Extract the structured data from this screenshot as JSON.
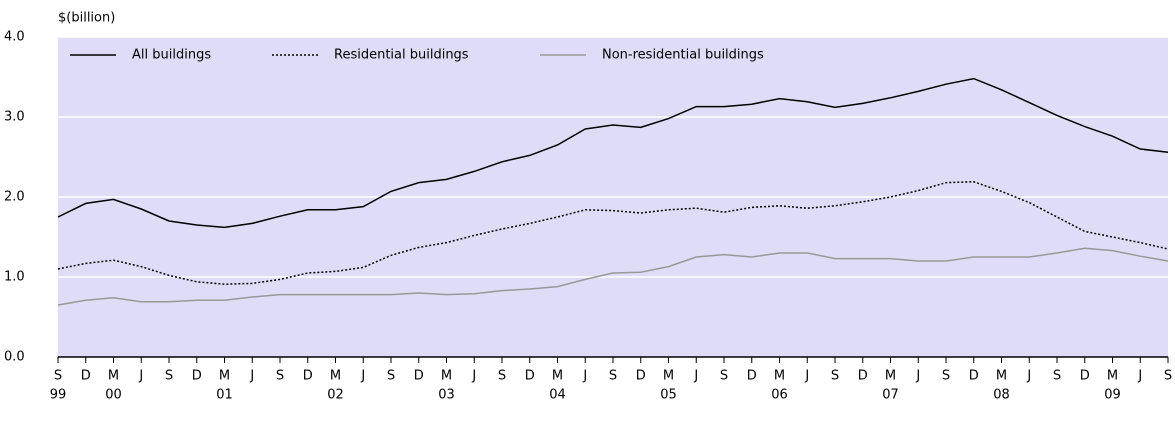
{
  "chart_data": {
    "type": "line",
    "y_axis_label": "$(billion)",
    "categories": [
      "S",
      "D",
      "M",
      "J",
      "S",
      "D",
      "M",
      "J",
      "S",
      "D",
      "M",
      "J",
      "S",
      "D",
      "M",
      "J",
      "S",
      "D",
      "M",
      "J",
      "S",
      "D",
      "M",
      "J",
      "S",
      "D",
      "M",
      "J",
      "S",
      "D",
      "M",
      "J",
      "S",
      "D",
      "M",
      "J",
      "S",
      "D",
      "M",
      "J",
      "S"
    ],
    "category_groups": [
      "99",
      null,
      "00",
      null,
      null,
      null,
      "01",
      null,
      null,
      null,
      "02",
      null,
      null,
      null,
      "03",
      null,
      null,
      null,
      "04",
      null,
      null,
      null,
      "05",
      null,
      null,
      null,
      "06",
      null,
      null,
      null,
      "07",
      null,
      null,
      null,
      "08",
      null,
      null,
      null,
      "09",
      null,
      null
    ],
    "series": [
      {
        "name": "All buildings",
        "color": "#000000",
        "dash": "solid",
        "values": [
          1.75,
          1.92,
          1.97,
          1.85,
          1.7,
          1.65,
          1.62,
          1.67,
          1.76,
          1.84,
          1.84,
          1.88,
          2.07,
          2.18,
          2.22,
          2.32,
          2.44,
          2.52,
          2.65,
          2.85,
          2.9,
          2.87,
          2.98,
          3.13,
          3.13,
          3.16,
          3.23,
          3.19,
          3.12,
          3.17,
          3.24,
          3.32,
          3.41,
          3.48,
          3.34,
          3.18,
          3.02,
          2.88,
          2.76,
          2.6,
          2.56
        ]
      },
      {
        "name": "Residential buildings",
        "color": "#000000",
        "dash": "dotted",
        "values": [
          1.1,
          1.17,
          1.21,
          1.13,
          1.02,
          0.94,
          0.91,
          0.92,
          0.97,
          1.05,
          1.07,
          1.12,
          1.27,
          1.37,
          1.43,
          1.52,
          1.6,
          1.67,
          1.75,
          1.84,
          1.83,
          1.8,
          1.84,
          1.86,
          1.81,
          1.87,
          1.89,
          1.86,
          1.89,
          1.94,
          2.0,
          2.08,
          2.18,
          2.19,
          2.07,
          1.93,
          1.75,
          1.57,
          1.5,
          1.43,
          1.35
        ]
      },
      {
        "name": "Non-residential buildings",
        "color": "#999999",
        "dash": "solid",
        "values": [
          0.65,
          0.71,
          0.74,
          0.69,
          0.69,
          0.71,
          0.71,
          0.75,
          0.78,
          0.78,
          0.78,
          0.78,
          0.78,
          0.8,
          0.78,
          0.79,
          0.83,
          0.85,
          0.88,
          0.97,
          1.05,
          1.06,
          1.13,
          1.25,
          1.28,
          1.25,
          1.3,
          1.3,
          1.23,
          1.23,
          1.23,
          1.2,
          1.2,
          1.25,
          1.25,
          1.25,
          1.3,
          1.36,
          1.33,
          1.26,
          1.2
        ]
      }
    ],
    "ylim": [
      0,
      4
    ],
    "yticks": [
      {
        "value": 0,
        "label": "0.0"
      },
      {
        "value": 1,
        "label": "1.0"
      },
      {
        "value": 2,
        "label": "2.0"
      },
      {
        "value": 3,
        "label": "3.0"
      },
      {
        "value": 4,
        "label": "4.0"
      }
    ],
    "grid": true,
    "grid_color": "#ffffff",
    "plot_background": "#dedcf6",
    "legend": "top-left"
  }
}
